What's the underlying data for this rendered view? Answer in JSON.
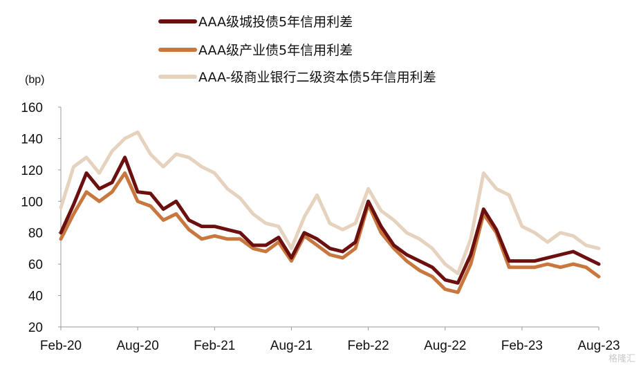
{
  "chart_data": {
    "type": "line",
    "ylabel": "(bp)",
    "ylim": [
      20,
      160
    ],
    "yticks": [
      20,
      40,
      60,
      80,
      100,
      120,
      140,
      160
    ],
    "xlim": [
      "2020-02",
      "2023-08"
    ],
    "xticks": [
      "Feb-20",
      "Aug-20",
      "Feb-21",
      "Aug-21",
      "Feb-22",
      "Aug-22",
      "Feb-23",
      "Aug-23"
    ],
    "grid": false,
    "legend_position": "top",
    "series": [
      {
        "name": "AAA级城投债5年信用利差",
        "color": "#6b0f0f",
        "x": [
          "2020-02",
          "2020-03",
          "2020-04",
          "2020-05",
          "2020-06",
          "2020-07",
          "2020-08",
          "2020-09",
          "2020-10",
          "2020-11",
          "2020-12",
          "2021-01",
          "2021-02",
          "2021-03",
          "2021-04",
          "2021-05",
          "2021-06",
          "2021-07",
          "2021-08",
          "2021-09",
          "2021-10",
          "2021-11",
          "2021-12",
          "2022-01",
          "2022-02",
          "2022-03",
          "2022-04",
          "2022-05",
          "2022-06",
          "2022-07",
          "2022-08",
          "2022-09",
          "2022-10",
          "2022-11",
          "2022-12",
          "2023-01",
          "2023-02",
          "2023-03",
          "2023-04",
          "2023-05",
          "2023-06",
          "2023-07",
          "2023-08"
        ],
        "y": [
          80,
          98,
          118,
          108,
          112,
          128,
          106,
          105,
          95,
          100,
          88,
          84,
          84,
          82,
          80,
          72,
          72,
          77,
          64,
          80,
          76,
          70,
          68,
          74,
          100,
          84,
          72,
          66,
          62,
          58,
          50,
          48,
          66,
          95,
          82,
          62,
          62,
          62,
          64,
          66,
          68,
          64,
          60
        ]
      },
      {
        "name": "AAA级产业债5年信用利差",
        "color": "#c8773e",
        "x": [
          "2020-02",
          "2020-03",
          "2020-04",
          "2020-05",
          "2020-06",
          "2020-07",
          "2020-08",
          "2020-09",
          "2020-10",
          "2020-11",
          "2020-12",
          "2021-01",
          "2021-02",
          "2021-03",
          "2021-04",
          "2021-05",
          "2021-06",
          "2021-07",
          "2021-08",
          "2021-09",
          "2021-10",
          "2021-11",
          "2021-12",
          "2022-01",
          "2022-02",
          "2022-03",
          "2022-04",
          "2022-05",
          "2022-06",
          "2022-07",
          "2022-08",
          "2022-09",
          "2022-10",
          "2022-11",
          "2022-12",
          "2023-01",
          "2023-02",
          "2023-03",
          "2023-04",
          "2023-05",
          "2023-06",
          "2023-07",
          "2023-08"
        ],
        "y": [
          76,
          92,
          106,
          100,
          106,
          118,
          100,
          97,
          88,
          92,
          82,
          76,
          78,
          76,
          76,
          70,
          68,
          74,
          62,
          78,
          72,
          66,
          64,
          70,
          98,
          80,
          70,
          62,
          56,
          52,
          44,
          42,
          60,
          92,
          80,
          58,
          58,
          58,
          60,
          58,
          60,
          58,
          52
        ]
      },
      {
        "name": "AAA-级商业银行二级资本债5年信用利差",
        "color": "#e6d3bf",
        "x": [
          "2020-02",
          "2020-03",
          "2020-04",
          "2020-05",
          "2020-06",
          "2020-07",
          "2020-08",
          "2020-09",
          "2020-10",
          "2020-11",
          "2020-12",
          "2021-01",
          "2021-02",
          "2021-03",
          "2021-04",
          "2021-05",
          "2021-06",
          "2021-07",
          "2021-08",
          "2021-09",
          "2021-10",
          "2021-11",
          "2021-12",
          "2022-01",
          "2022-02",
          "2022-03",
          "2022-04",
          "2022-05",
          "2022-06",
          "2022-07",
          "2022-08",
          "2022-09",
          "2022-10",
          "2022-11",
          "2022-12",
          "2023-01",
          "2023-02",
          "2023-03",
          "2023-04",
          "2023-05",
          "2023-06",
          "2023-07",
          "2023-08"
        ],
        "y": [
          96,
          122,
          128,
          118,
          132,
          140,
          144,
          130,
          122,
          130,
          128,
          122,
          118,
          108,
          102,
          92,
          86,
          84,
          70,
          90,
          104,
          86,
          82,
          86,
          108,
          94,
          88,
          80,
          76,
          70,
          60,
          54,
          76,
          118,
          108,
          104,
          84,
          80,
          74,
          80,
          78,
          72,
          70
        ]
      }
    ]
  },
  "watermark": "格隆汇"
}
